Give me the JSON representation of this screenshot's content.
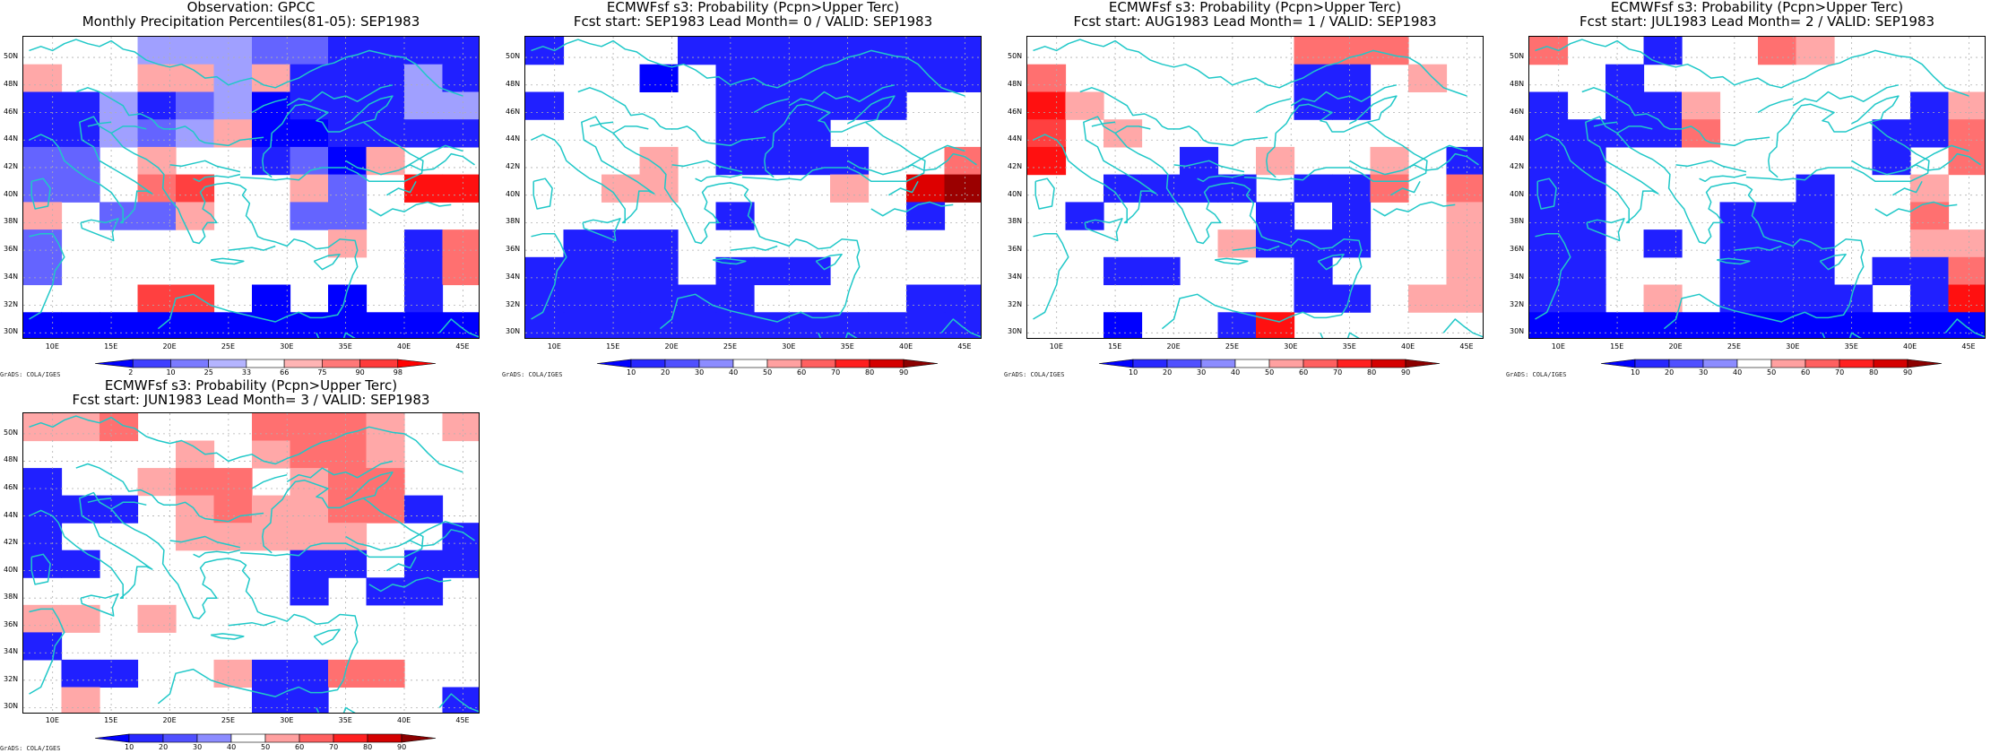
{
  "panels": [
    {
      "title1": "Observation: GPCC",
      "title2": "Monthly Precipitation Percentiles(81-05): SEP1983",
      "colorbar": {
        "labels": [
          "2",
          "10",
          "25",
          "33",
          "66",
          "75",
          "90",
          "98"
        ],
        "colors": [
          "#0000ff",
          "#3f3fff",
          "#7a7aff",
          "#b4b4ff",
          "#ffffff",
          "#ffb4b4",
          "#ff7878",
          "#ff3a3a",
          "#ff0000"
        ]
      },
      "grid": [
        "WWWJJJIIHHHH",
        "KWWKKJKHHHJH",
        "HHJHIJGHHHJJ",
        "HHJIJKGGHHHH",
        "IIWKWWHIGKWW",
        "IIWLMWWKIWNN",
        "KWIIKWWIIWWW",
        "IWWWWWWWKWHL",
        "IWWWWWWWWWHL",
        "WWWMMWGWGWHW",
        "GGGGGGGGGGGG"
      ]
    },
    {
      "title1": "ECMWFsf s3: Probability (Pcpn>Upper Terc)",
      "title2": "Fcst start: SEP1983  Lead Month= 0 / VALID: SEP1983",
      "colorbar": {
        "labels": [
          "10",
          "20",
          "30",
          "40",
          "50",
          "60",
          "70",
          "80",
          "90"
        ],
        "colors": [
          "#0000ff",
          "#2828ff",
          "#5050ff",
          "#8c8cff",
          "#ffffff",
          "#ffa0a0",
          "#ff6060",
          "#ff2020",
          "#d40000",
          "#8b0000"
        ]
      },
      "grid": [
        "HWWWHHHHHHHH",
        "WWWGWHHHHHHH",
        "HWWWWHHHHHWW",
        "WWWWWHHHWWWW",
        "WWWKWHHHHWWL",
        "WWKKWWWWKWPQ",
        "WWWWWHWWWWHW",
        "WHHHWWWWWWWW",
        "HHHHWHHHWWWW",
        "HHHHHHWWWWHH",
        "HHHHHHHHHHHH"
      ]
    },
    {
      "title1": "ECMWFsf s3: Probability (Pcpn>Upper Terc)",
      "title2": "Fcst start: AUG1983  Lead Month= 1 / VALID: SEP1983",
      "colorbar": {
        "labels": [
          "10",
          "20",
          "30",
          "40",
          "50",
          "60",
          "70",
          "80",
          "90"
        ],
        "colors": [
          "#0000ff",
          "#2828ff",
          "#5050ff",
          "#8c8cff",
          "#ffffff",
          "#ffa0a0",
          "#ff6060",
          "#ff2020",
          "#d40000",
          "#8b0000"
        ]
      },
      "grid": [
        "WWWWWWWLLLWW",
        "LWWWWWWHHWKW",
        "NKWWWWWHHWWW",
        "MWKWWWWWWWWW",
        "NWWWHWKWWKWH",
        "WWHHHHWHHLWL",
        "WHWWWWHWHWWK",
        "WWWWWKHHHWWK",
        "WWHHWWWHWWWK",
        "WWWWWWWHHWKK",
        "WWGWWHNWWWWW"
      ]
    },
    {
      "title1": "ECMWFsf s3: Probability (Pcpn>Upper Terc)",
      "title2": "Fcst start: JUL1983  Lead Month= 2 / VALID: SEP1983",
      "colorbar": {
        "labels": [
          "10",
          "20",
          "30",
          "40",
          "50",
          "60",
          "70",
          "80",
          "90"
        ],
        "colors": [
          "#0000ff",
          "#2828ff",
          "#5050ff",
          "#8c8cff",
          "#ffffff",
          "#ffa0a0",
          "#ff6060",
          "#ff2020",
          "#d40000",
          "#8b0000"
        ]
      },
      "grid": [
        "LWWHWWLKWWWW",
        "WWHWWWWWWWWW",
        "HWHHKWWWWWHK",
        "HHHHLWWWWHHL",
        "HHWWWWWWWHWL",
        "HHWWWWWHWWKW",
        "HHWWWHHHWWLW",
        "HHWHWHHHWWKK",
        "HHWWWHHHWHHL",
        "HHWKWHHHHWHN",
        "GGGGGGGGGGGG"
      ]
    },
    {
      "title1": "ECMWFsf s3: Probability (Pcpn>Upper Terc)",
      "title2": "Fcst start: JUN1983  Lead Month= 3 / VALID: SEP1983",
      "colorbar": {
        "labels": [
          "10",
          "20",
          "30",
          "40",
          "50",
          "60",
          "70",
          "80",
          "90"
        ],
        "colors": [
          "#0000ff",
          "#2828ff",
          "#5050ff",
          "#8c8cff",
          "#ffffff",
          "#ffa0a0",
          "#ff6060",
          "#ff2020",
          "#d40000",
          "#8b0000"
        ]
      },
      "grid": [
        "KKLWWWLLLKWK",
        "WWWWKWKLLKWW",
        "HWWKLLWKLLWW",
        "HHHWKLKKLLHW",
        "HWWWKKKKKWWH",
        "HHWWWWWHHWHH",
        "WWWWWWWHWHHW",
        "KKWKWWWWWWWW",
        "HWWWWWWWWWWW",
        "WHHWWKHHLLWW",
        "WKWWWWHHWWWH"
      ]
    }
  ],
  "map": {
    "lat_labels": [
      "50N",
      "48N",
      "46N",
      "44N",
      "42N",
      "40N",
      "38N",
      "36N",
      "34N",
      "32N",
      "30N"
    ],
    "lon_labels": [
      "10E",
      "15E",
      "20E",
      "25E",
      "30E",
      "35E",
      "40E",
      "45E"
    ],
    "coastline_color": "#20c8c8",
    "grid_line_color": "#b0b0b0"
  },
  "credit": "GrADS: COLA/IGES",
  "grid_legend": {
    "W": "#ffffff",
    "G": "#0000ff",
    "H": "#2020ff",
    "I": "#6464ff",
    "J": "#a0a0ff",
    "K": "#ffa8a8",
    "L": "#ff7070",
    "M": "#ff4040",
    "N": "#ff1010",
    "P": "#dd0000",
    "Q": "#9b0000"
  }
}
